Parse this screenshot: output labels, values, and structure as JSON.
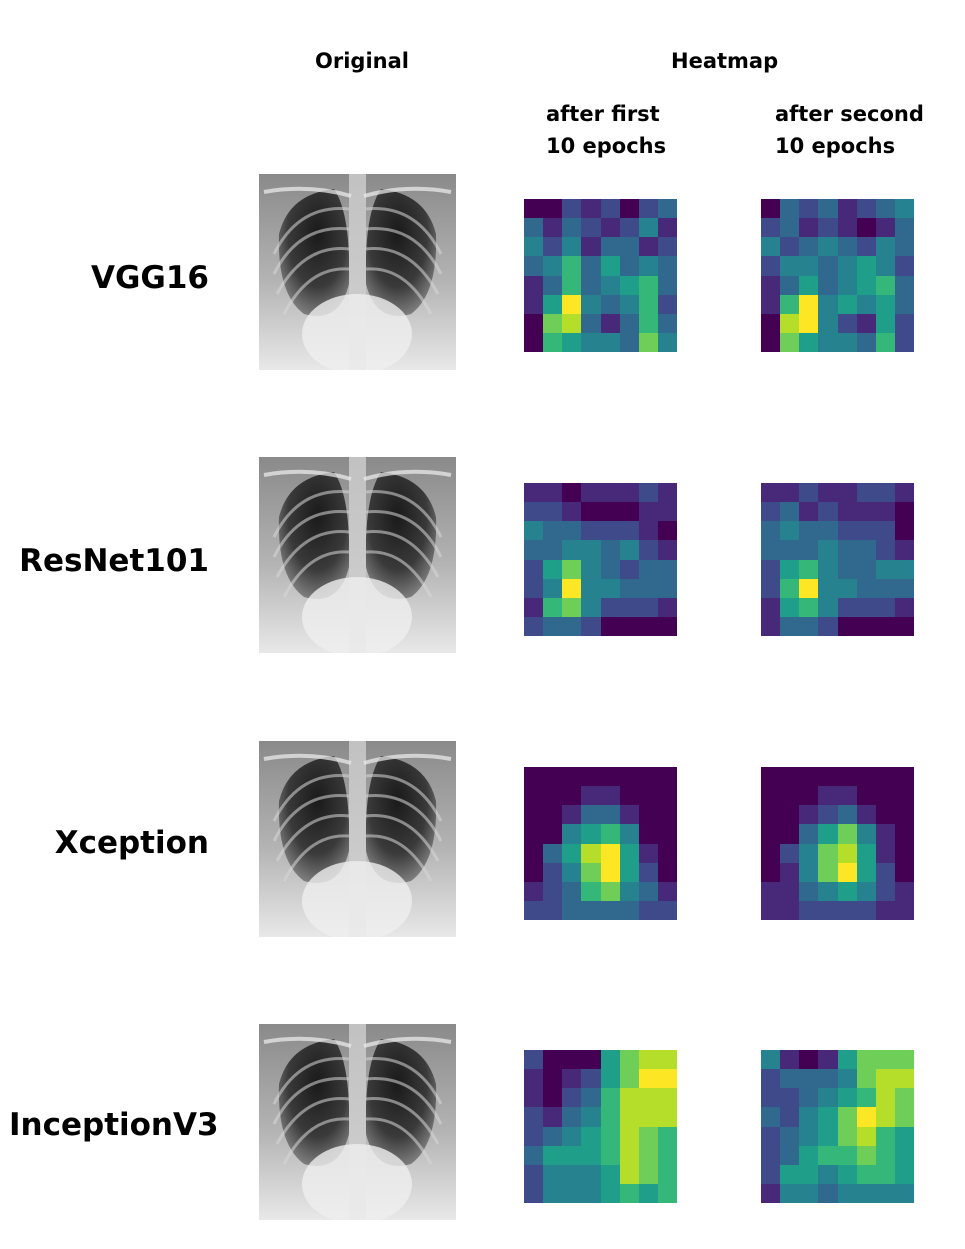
{
  "headers": {
    "original": "Original",
    "heatmap": "Heatmap",
    "after_first": "after first\n10 epochs",
    "after_second": "after second\n10 epochs"
  },
  "colormap": [
    "#440154",
    "#482878",
    "#3e4a89",
    "#31688e",
    "#26828e",
    "#1f9e89",
    "#35b779",
    "#6ece58",
    "#b5de2b",
    "#fde725"
  ],
  "rows": [
    {
      "label": "VGG16",
      "heatmaps": [
        [
          [
            0,
            0,
            2,
            1,
            2,
            0,
            2,
            3
          ],
          [
            3,
            1,
            3,
            2,
            1,
            2,
            4,
            1
          ],
          [
            4,
            2,
            4,
            1,
            3,
            3,
            1,
            2
          ],
          [
            3,
            4,
            6,
            3,
            5,
            3,
            4,
            3
          ],
          [
            1,
            3,
            6,
            3,
            4,
            5,
            6,
            3
          ],
          [
            1,
            5,
            9,
            4,
            3,
            4,
            6,
            2
          ],
          [
            0,
            7,
            8,
            3,
            1,
            3,
            6,
            3
          ],
          [
            0,
            6,
            5,
            4,
            4,
            3,
            7,
            4
          ]
        ],
        [
          [
            0,
            3,
            2,
            3,
            1,
            2,
            3,
            4
          ],
          [
            2,
            3,
            1,
            2,
            1,
            0,
            1,
            3
          ],
          [
            4,
            2,
            3,
            4,
            3,
            2,
            4,
            3
          ],
          [
            2,
            4,
            4,
            3,
            4,
            5,
            4,
            2
          ],
          [
            1,
            3,
            5,
            3,
            4,
            5,
            6,
            3
          ],
          [
            1,
            6,
            9,
            4,
            5,
            4,
            5,
            3
          ],
          [
            0,
            8,
            9,
            4,
            2,
            1,
            5,
            2
          ],
          [
            0,
            7,
            5,
            4,
            4,
            3,
            6,
            2
          ]
        ]
      ]
    },
    {
      "label": "ResNet101",
      "heatmaps": [
        [
          [
            1,
            1,
            0,
            1,
            1,
            1,
            2,
            1
          ],
          [
            2,
            2,
            1,
            0,
            0,
            0,
            1,
            1
          ],
          [
            4,
            3,
            3,
            2,
            2,
            2,
            1,
            0
          ],
          [
            3,
            3,
            4,
            4,
            3,
            4,
            2,
            1
          ],
          [
            2,
            5,
            7,
            4,
            3,
            2,
            3,
            3
          ],
          [
            2,
            4,
            9,
            4,
            4,
            3,
            3,
            3
          ],
          [
            1,
            6,
            7,
            4,
            2,
            2,
            2,
            1
          ],
          [
            2,
            3,
            3,
            2,
            0,
            0,
            0,
            0
          ]
        ],
        [
          [
            1,
            1,
            2,
            1,
            1,
            2,
            2,
            1
          ],
          [
            2,
            3,
            1,
            2,
            1,
            1,
            1,
            0
          ],
          [
            3,
            4,
            3,
            3,
            2,
            2,
            2,
            0
          ],
          [
            3,
            3,
            3,
            4,
            3,
            3,
            2,
            1
          ],
          [
            2,
            5,
            6,
            4,
            3,
            3,
            4,
            4
          ],
          [
            2,
            6,
            9,
            4,
            4,
            3,
            3,
            3
          ],
          [
            1,
            5,
            6,
            4,
            2,
            2,
            2,
            1
          ],
          [
            1,
            3,
            3,
            2,
            0,
            0,
            0,
            0
          ]
        ]
      ]
    },
    {
      "label": "Xception",
      "heatmaps": [
        [
          [
            0,
            0,
            0,
            0,
            0,
            0,
            0,
            0
          ],
          [
            0,
            0,
            0,
            1,
            1,
            0,
            0,
            0
          ],
          [
            0,
            0,
            1,
            3,
            3,
            1,
            0,
            0
          ],
          [
            0,
            0,
            4,
            5,
            6,
            4,
            0,
            0
          ],
          [
            0,
            3,
            5,
            8,
            9,
            5,
            1,
            0
          ],
          [
            0,
            2,
            4,
            7,
            9,
            5,
            2,
            0
          ],
          [
            1,
            2,
            3,
            6,
            7,
            4,
            3,
            1
          ],
          [
            2,
            2,
            3,
            3,
            3,
            3,
            2,
            2
          ]
        ],
        [
          [
            0,
            0,
            0,
            0,
            0,
            0,
            0,
            0
          ],
          [
            0,
            0,
            0,
            1,
            1,
            0,
            0,
            0
          ],
          [
            0,
            0,
            1,
            2,
            3,
            1,
            0,
            0
          ],
          [
            0,
            0,
            3,
            5,
            7,
            4,
            1,
            0
          ],
          [
            0,
            2,
            4,
            7,
            8,
            5,
            1,
            0
          ],
          [
            0,
            1,
            4,
            7,
            9,
            5,
            2,
            0
          ],
          [
            1,
            1,
            3,
            4,
            5,
            4,
            2,
            1
          ],
          [
            1,
            1,
            2,
            2,
            2,
            2,
            1,
            1
          ]
        ]
      ]
    },
    {
      "label": "InceptionV3",
      "heatmaps": [
        [
          [
            2,
            0,
            0,
            0,
            5,
            7,
            8,
            8
          ],
          [
            1,
            0,
            1,
            2,
            5,
            7,
            9,
            9
          ],
          [
            1,
            0,
            2,
            3,
            6,
            8,
            8,
            8
          ],
          [
            2,
            1,
            3,
            4,
            6,
            8,
            8,
            8
          ],
          [
            2,
            3,
            4,
            5,
            6,
            8,
            7,
            6
          ],
          [
            3,
            5,
            5,
            5,
            6,
            8,
            7,
            6
          ],
          [
            2,
            4,
            4,
            4,
            5,
            8,
            7,
            6
          ],
          [
            2,
            4,
            4,
            4,
            5,
            6,
            5,
            6
          ]
        ],
        [
          [
            4,
            1,
            0,
            1,
            5,
            7,
            7,
            7
          ],
          [
            2,
            3,
            3,
            3,
            4,
            7,
            8,
            8
          ],
          [
            2,
            2,
            3,
            4,
            5,
            6,
            8,
            7
          ],
          [
            3,
            2,
            4,
            5,
            7,
            9,
            8,
            7
          ],
          [
            2,
            3,
            4,
            5,
            7,
            8,
            6,
            5
          ],
          [
            2,
            3,
            5,
            6,
            6,
            7,
            6,
            5
          ],
          [
            2,
            5,
            5,
            4,
            5,
            6,
            6,
            5
          ],
          [
            1,
            4,
            4,
            3,
            4,
            4,
            4,
            4
          ]
        ]
      ]
    }
  ]
}
